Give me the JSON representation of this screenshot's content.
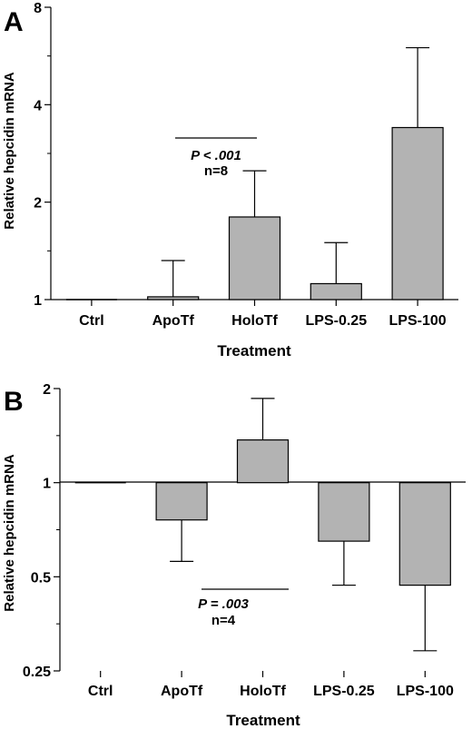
{
  "chart_data": [
    {
      "type": "bar",
      "panel_label": "A",
      "scale": "log2",
      "ylim": [
        1,
        8
      ],
      "yticks": [
        "1",
        "2",
        "4",
        "8"
      ],
      "xlabel": "Treatment",
      "ylabel": "Relative hepcidin mRNA",
      "categories": [
        "Ctrl",
        "ApoTf",
        "HoloTf",
        "LPS-0.25",
        "LPS-100"
      ],
      "values": [
        1.0,
        1.02,
        1.8,
        1.12,
        3.4
      ],
      "error_upper": [
        1.0,
        1.32,
        2.5,
        1.5,
        6.0
      ],
      "bar_color": "#b3b3b3",
      "annotation": {
        "p_text": "P < .001",
        "n_text": "n=8",
        "from": "ApoTf",
        "to": "HoloTf"
      }
    },
    {
      "type": "bar",
      "panel_label": "B",
      "scale": "log2",
      "ylim": [
        0.25,
        2
      ],
      "yticks": [
        "0.25",
        "0.5",
        "1",
        "2"
      ],
      "baseline": 1,
      "xlabel": "Treatment",
      "ylabel": "Relative hepcidin mRNA",
      "categories": [
        "Ctrl",
        "ApoTf",
        "HoloTf",
        "LPS-0.25",
        "LPS-100"
      ],
      "values": [
        1.0,
        0.76,
        1.37,
        0.65,
        0.47
      ],
      "error_outer": [
        1.0,
        0.56,
        1.86,
        0.47,
        0.29
      ],
      "bar_color": "#b3b3b3",
      "annotation": {
        "p_text": "P = .003",
        "n_text": "n=4",
        "from": "ApoTf",
        "to": "HoloTf"
      }
    }
  ]
}
